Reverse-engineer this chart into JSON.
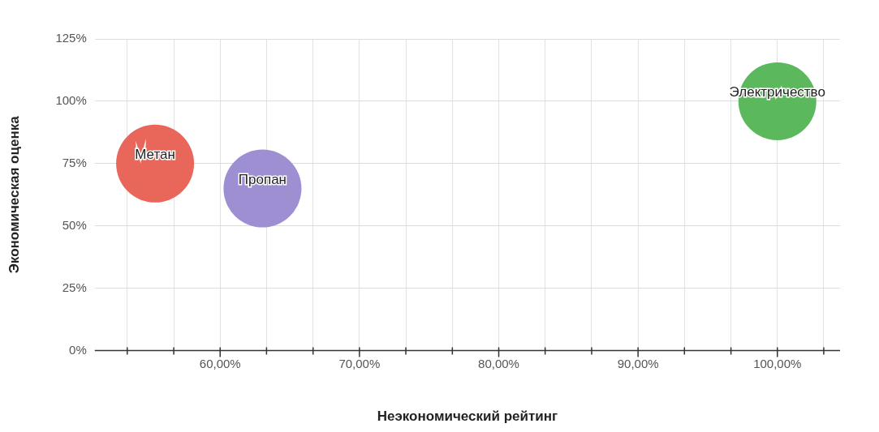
{
  "chart_data": {
    "type": "bubble",
    "xlabel": "Неэкономический рейтинг",
    "ylabel": "Экономическая оценка",
    "series": [
      {
        "name": "Метан",
        "color": "#e8675a",
        "x": [
          55.33
        ],
        "values": [
          75
        ],
        "sizes": [
          1
        ]
      },
      {
        "name": "Пропан",
        "color": "#9e8fd3",
        "x": [
          63.04
        ],
        "values": [
          65
        ],
        "sizes": [
          1
        ]
      },
      {
        "name": "Электричество",
        "color": "#5cb85c",
        "x": [
          100
        ],
        "values": [
          100
        ],
        "sizes": [
          1
        ]
      }
    ],
    "xlim": [
      51,
      104.5
    ],
    "ylim": [
      0,
      125
    ],
    "xticks": [
      {
        "value": 53.33,
        "label": null
      },
      {
        "value": 56.67,
        "label": null
      },
      {
        "value": 60,
        "label": "60,00%"
      },
      {
        "value": 63.33,
        "label": null
      },
      {
        "value": 66.67,
        "label": null
      },
      {
        "value": 70,
        "label": "70,00%"
      },
      {
        "value": 73.33,
        "label": null
      },
      {
        "value": 76.67,
        "label": null
      },
      {
        "value": 80,
        "label": "80,00%"
      },
      {
        "value": 83.33,
        "label": null
      },
      {
        "value": 86.67,
        "label": null
      },
      {
        "value": 90,
        "label": "90,00%"
      },
      {
        "value": 93.33,
        "label": null
      },
      {
        "value": 96.67,
        "label": null
      },
      {
        "value": 100,
        "label": "100,00%"
      },
      {
        "value": 103.33,
        "label": null
      }
    ],
    "yticks": [
      {
        "value": 0,
        "label": "0%"
      },
      {
        "value": 25,
        "label": "25%"
      },
      {
        "value": 50,
        "label": "50%"
      },
      {
        "value": 75,
        "label": "75%"
      },
      {
        "value": 100,
        "label": "100%"
      },
      {
        "value": 125,
        "label": "125%"
      }
    ],
    "grid": true,
    "legend": false
  }
}
